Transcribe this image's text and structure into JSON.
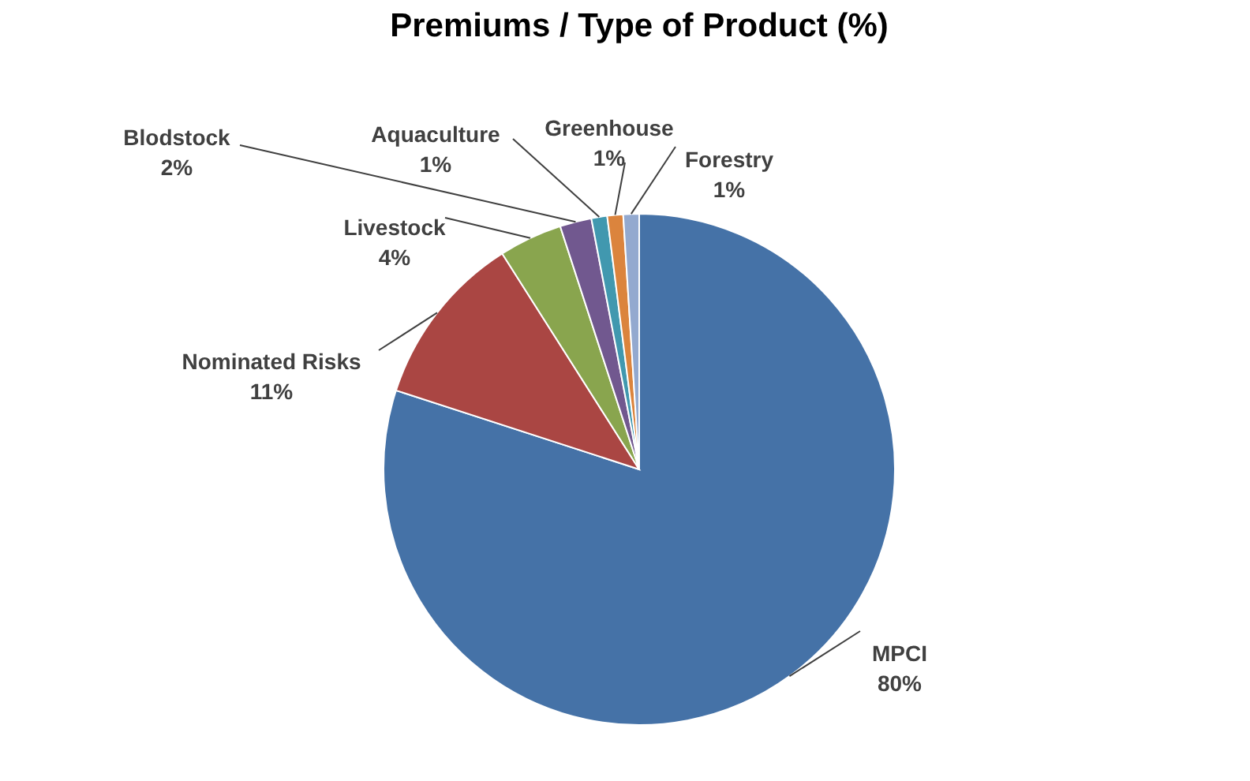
{
  "chart_data": {
    "type": "pie",
    "title": "Premiums / Type of Product (%)",
    "categories": [
      "MPCI",
      "Nominated Risks",
      "Livestock",
      "Blodstock",
      "Aquaculture",
      "Greenhouse",
      "Forestry"
    ],
    "values": [
      80,
      11,
      4,
      2,
      1,
      1,
      1
    ],
    "value_labels": [
      "80%",
      "11%",
      "4%",
      "2%",
      "1%",
      "1%",
      "1%"
    ],
    "colors": [
      "#4572a7",
      "#aa4643",
      "#89a54e",
      "#71588f",
      "#4198af",
      "#db843d",
      "#93a9cf"
    ],
    "legend": false
  }
}
